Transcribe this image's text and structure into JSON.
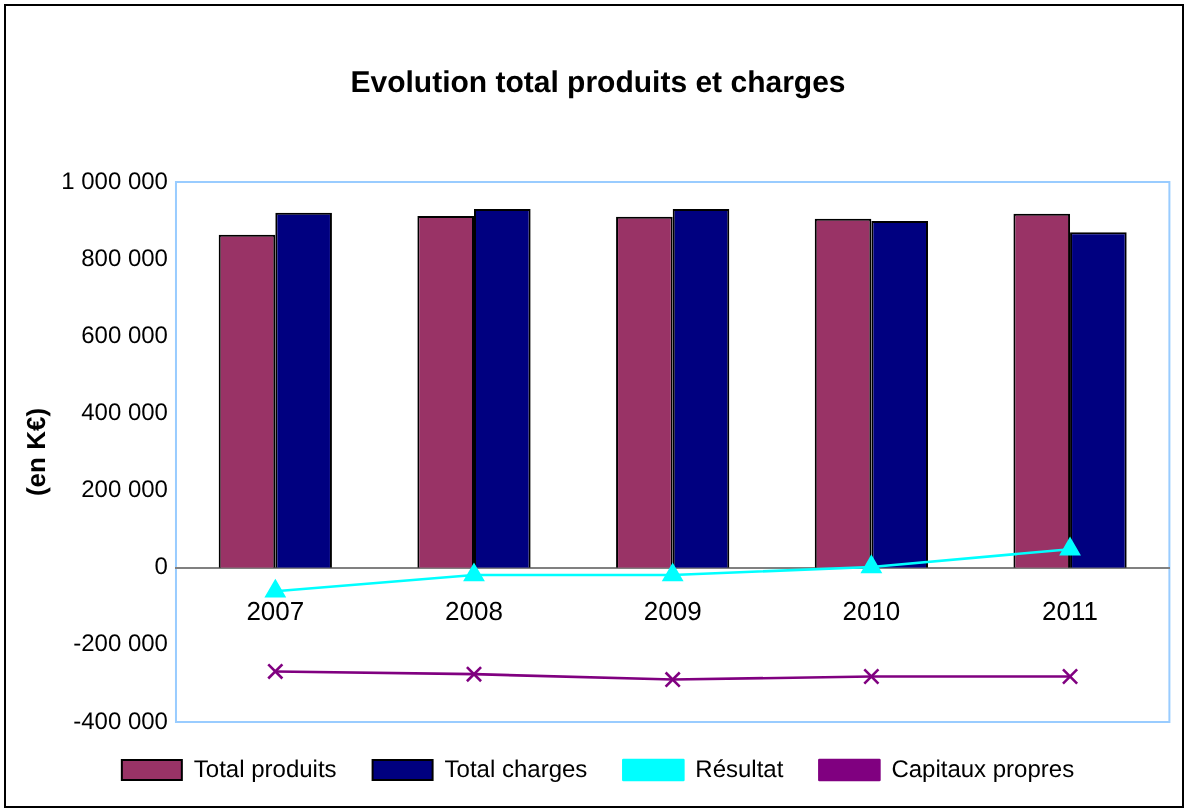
{
  "chart_data": {
    "type": "bar",
    "title": "Evolution total produits et charges",
    "ylabel": "(en K€)",
    "categories": [
      "2007",
      "2008",
      "2009",
      "2010",
      "2011"
    ],
    "series": [
      {
        "name": "Total produits",
        "color": "#993366",
        "values": [
          863000,
          912000,
          910000,
          905000,
          918000
        ]
      },
      {
        "name": "Total charges",
        "color": "#000080",
        "values": [
          920000,
          930000,
          930000,
          899000,
          870000
        ]
      },
      {
        "name": "Résultat",
        "type": "line",
        "color": "#00ffff",
        "marker": "triangle",
        "values": [
          -61000,
          -19000,
          -19000,
          2000,
          48000
        ]
      },
      {
        "name": "Capitaux propres",
        "type": "line",
        "color": "#800080",
        "marker": "cross",
        "values": [
          -269000,
          -276000,
          -290000,
          -282000,
          -282000
        ]
      }
    ],
    "ylim": [
      -400000,
      1000000
    ],
    "yticks": [
      {
        "value": -400000,
        "label": "-400 000"
      },
      {
        "value": -200000,
        "label": "-200 000"
      },
      {
        "value": 0,
        "label": "0"
      },
      {
        "value": 200000,
        "label": "200 000"
      },
      {
        "value": 400000,
        "label": "400 000"
      },
      {
        "value": 600000,
        "label": "600 000"
      },
      {
        "value": 800000,
        "label": "800 000"
      },
      {
        "value": 1000000,
        "label": "1 000 000"
      }
    ],
    "grid": false,
    "legend": "bottom"
  }
}
